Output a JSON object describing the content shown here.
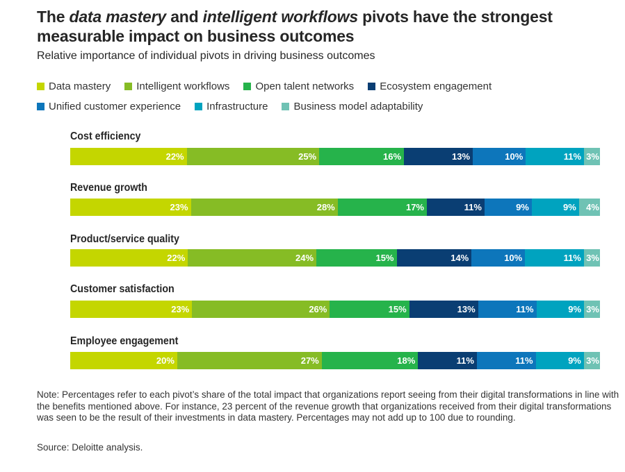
{
  "title": {
    "part1": "The ",
    "em1": "data mastery",
    "part2": " and ",
    "em2": "intelligent workflows",
    "part3": " pivots have the strongest measurable impact on business outcomes"
  },
  "subtitle": "Relative importance of individual pivots in driving business outcomes",
  "colors": {
    "Data mastery": "#c4d600",
    "Intelligent workflows": "#86bc25",
    "Open talent networks": "#26b34b",
    "Ecosystem engagement": "#0a3e73",
    "Unified customer experience": "#0d76bb",
    "Infrastructure": "#00a3bf",
    "Business model adaptability": "#6fc2b4"
  },
  "chart_data": {
    "type": "bar",
    "orientation": "horizontal",
    "stacked": true,
    "categories": [
      "Cost efficiency",
      "Revenue growth",
      "Product/service quality",
      "Customer satisfaction",
      "Employee engagement"
    ],
    "series": [
      {
        "name": "Data mastery",
        "values": [
          22,
          23,
          22,
          23,
          20
        ]
      },
      {
        "name": "Intelligent workflows",
        "values": [
          25,
          28,
          24,
          26,
          27
        ]
      },
      {
        "name": "Open talent networks",
        "values": [
          16,
          17,
          15,
          15,
          18
        ]
      },
      {
        "name": "Ecosystem engagement",
        "values": [
          13,
          11,
          14,
          13,
          11
        ]
      },
      {
        "name": "Unified customer experience",
        "values": [
          10,
          9,
          10,
          11,
          11
        ]
      },
      {
        "name": "Infrastructure",
        "values": [
          11,
          9,
          11,
          9,
          9
        ]
      },
      {
        "name": "Business model adaptability",
        "values": [
          3,
          4,
          3,
          3,
          3
        ]
      }
    ],
    "value_suffix": "%",
    "legend_position": "top",
    "grid": false
  },
  "note": "Note: Percentages refer to each pivot’s share of the total impact that organizations report seeing from their digital transformations in line with the benefits mentioned above. For instance, 23 percent of the revenue growth that organizations received from their digital transformations was seen to be the result of their investments in data mastery. Percentages may not add up to 100 due to rounding.",
  "source": "Source: Deloitte analysis."
}
